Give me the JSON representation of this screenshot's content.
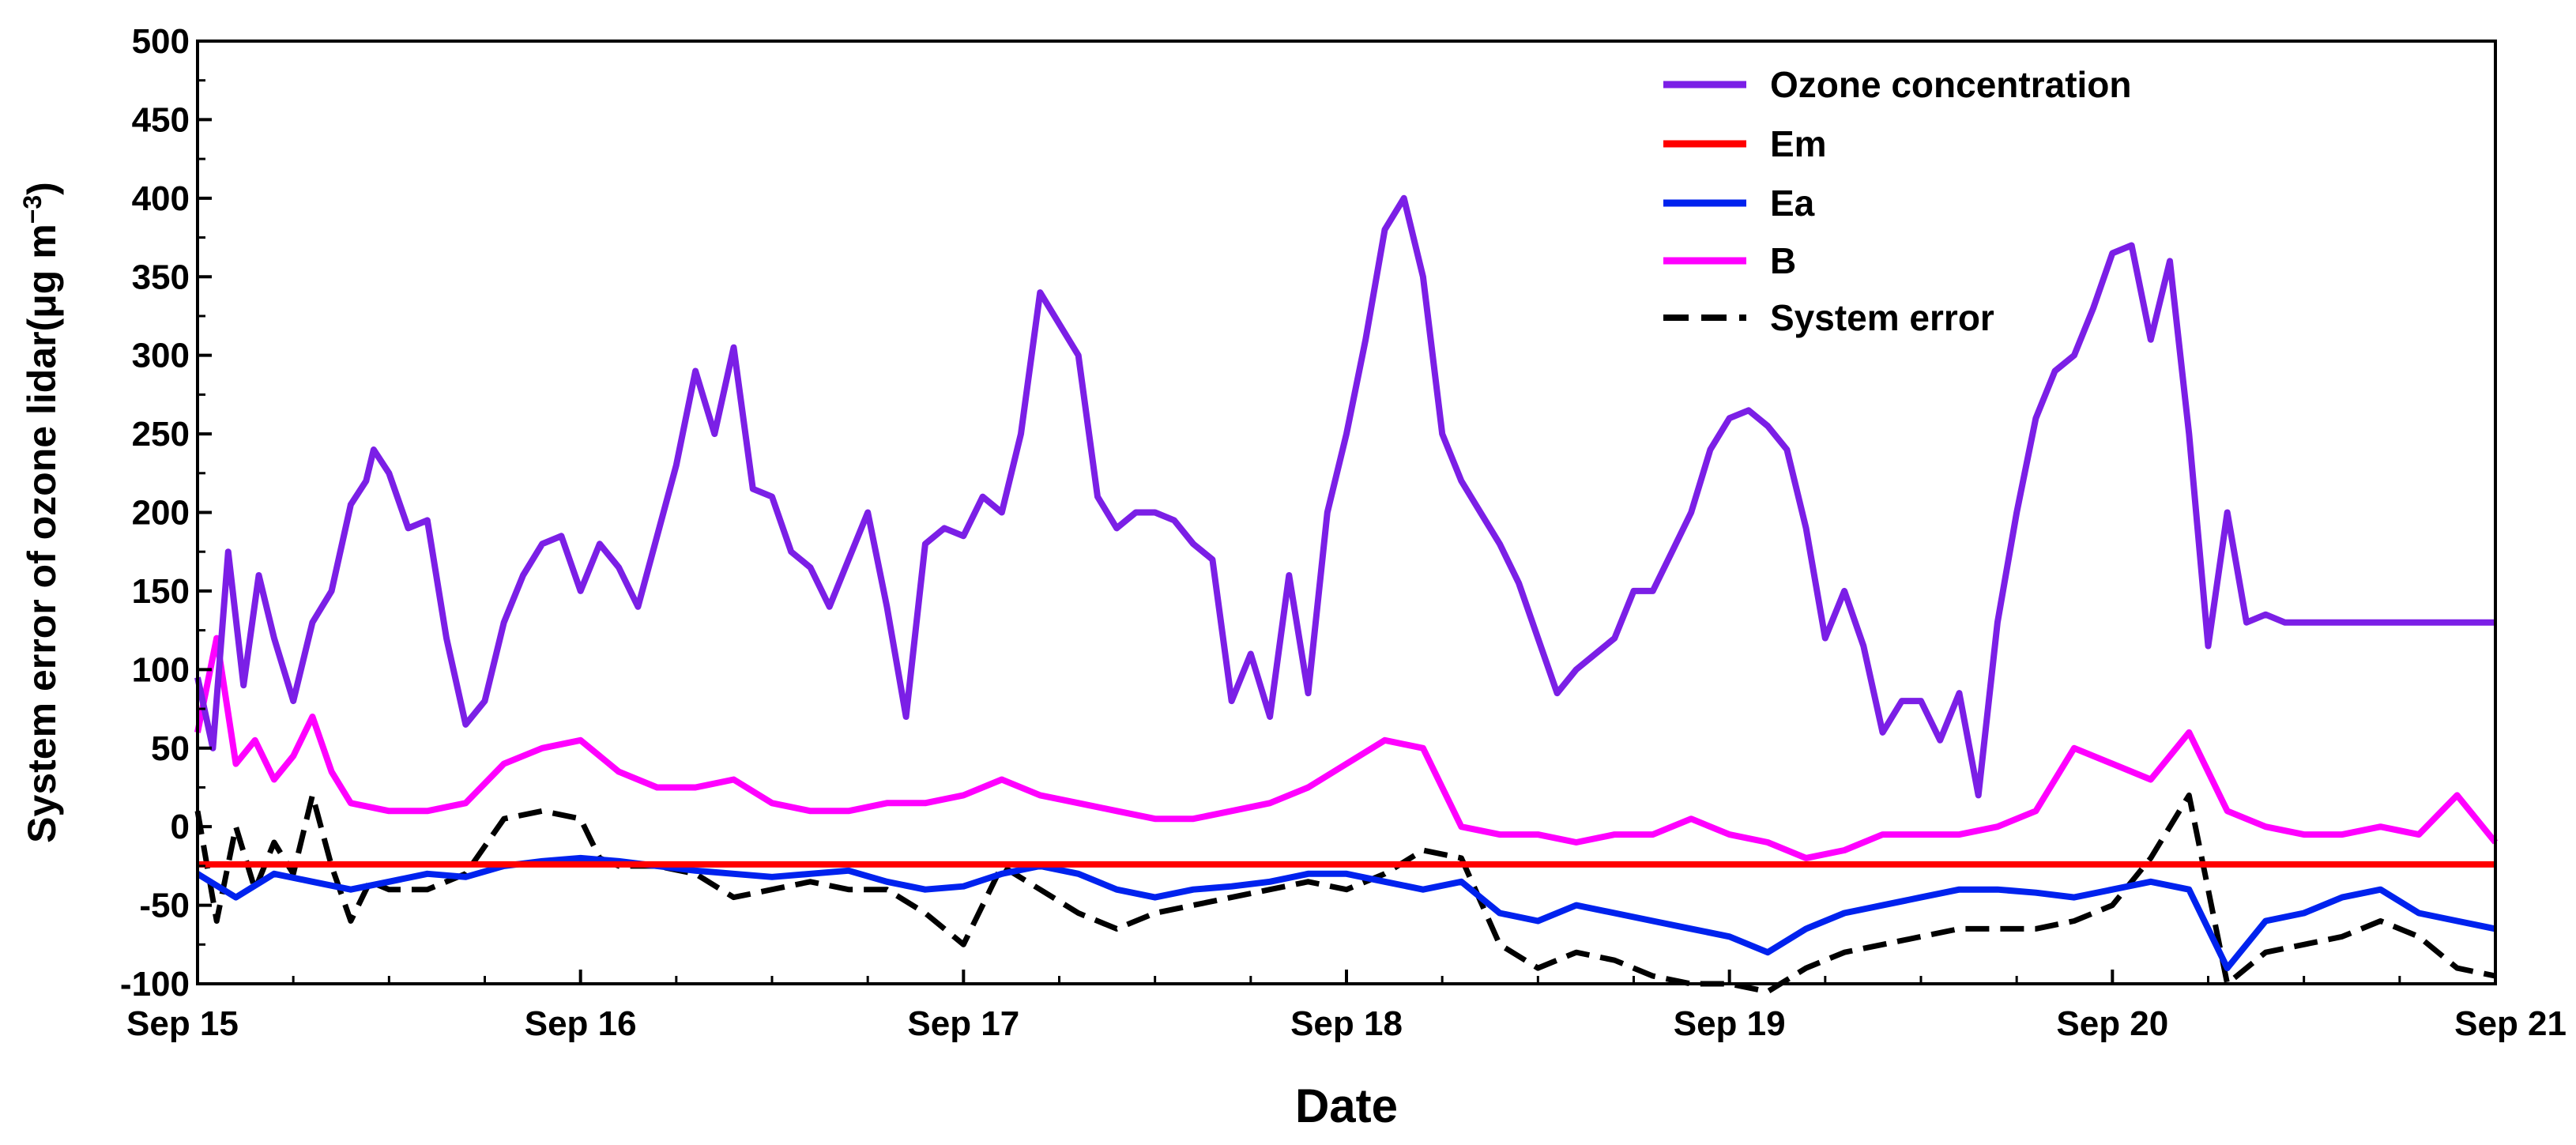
{
  "chart_data": {
    "type": "line",
    "title": "",
    "xlabel": "Date",
    "ylabel_main": "System error of ozone lidar(",
    "ylabel_unit": "μg m",
    "ylabel_sup": "−3",
    "ylabel_close": ")",
    "x_tick_labels": [
      "Sep 15",
      "Sep 16",
      "Sep 17",
      "Sep 18",
      "Sep 19",
      "Sep 20",
      "Sep 21"
    ],
    "x_tick_values": [
      0,
      1,
      2,
      3,
      4,
      5,
      6
    ],
    "xlim": [
      0,
      6
    ],
    "ylim": [
      -100,
      500
    ],
    "y_ticks": [
      -100,
      -50,
      0,
      50,
      100,
      150,
      200,
      250,
      300,
      350,
      400,
      450,
      500
    ],
    "y_tick_labels": [
      "-100",
      "-50",
      "0",
      "50",
      "100",
      "150",
      "200",
      "250",
      "300",
      "350",
      "400",
      "450",
      "500"
    ],
    "legend_position": "top-right",
    "series": [
      {
        "name": "Ozone concentration",
        "color": "#7B1FE6",
        "style": "solid",
        "x": [
          0.0,
          0.04,
          0.08,
          0.12,
          0.16,
          0.2,
          0.25,
          0.3,
          0.35,
          0.4,
          0.44,
          0.46,
          0.5,
          0.55,
          0.6,
          0.65,
          0.7,
          0.75,
          0.8,
          0.85,
          0.9,
          0.95,
          1.0,
          1.05,
          1.1,
          1.15,
          1.2,
          1.25,
          1.3,
          1.35,
          1.4,
          1.45,
          1.5,
          1.55,
          1.6,
          1.65,
          1.7,
          1.75,
          1.8,
          1.85,
          1.9,
          1.95,
          2.0,
          2.05,
          2.1,
          2.15,
          2.2,
          2.25,
          2.3,
          2.35,
          2.4,
          2.45,
          2.5,
          2.55,
          2.6,
          2.65,
          2.7,
          2.75,
          2.8,
          2.85,
          2.9,
          2.95,
          3.0,
          3.05,
          3.1,
          3.15,
          3.2,
          3.25,
          3.3,
          3.35,
          3.4,
          3.45,
          3.5,
          3.55,
          3.6,
          3.65,
          3.7,
          3.75,
          3.8,
          3.85,
          3.9,
          3.95,
          4.0,
          4.05,
          4.1,
          4.15,
          4.2,
          4.25,
          4.3,
          4.35,
          4.4,
          4.45,
          4.5,
          4.55,
          4.6,
          4.65,
          4.7,
          4.75,
          4.8,
          4.85,
          4.9,
          4.95,
          5.0,
          5.05,
          5.1,
          5.15,
          5.2,
          5.25,
          5.3,
          5.35,
          5.4,
          5.45,
          5.5,
          5.55,
          5.6,
          5.65,
          5.7,
          5.75,
          5.8,
          5.85,
          5.9,
          5.95,
          6.0
        ],
        "y": [
          95,
          50,
          175,
          90,
          160,
          120,
          80,
          130,
          150,
          205,
          220,
          240,
          225,
          190,
          195,
          120,
          65,
          80,
          130,
          160,
          180,
          185,
          150,
          180,
          165,
          140,
          185,
          230,
          290,
          250,
          305,
          215,
          210,
          175,
          165,
          140,
          170,
          200,
          140,
          70,
          180,
          190,
          185,
          210,
          200,
          250,
          340,
          320,
          300,
          210,
          190,
          200,
          200,
          195,
          180,
          170,
          80,
          110,
          70,
          160,
          85,
          200,
          250,
          310,
          380,
          400,
          350,
          250,
          220,
          200,
          180,
          155,
          120,
          85,
          100,
          110,
          120,
          150,
          150,
          175,
          200,
          240,
          260,
          265,
          255,
          240,
          190,
          120,
          150,
          115,
          60,
          80,
          80,
          55,
          85,
          20,
          130,
          200,
          260,
          290,
          300,
          330,
          365,
          370,
          310,
          360,
          250,
          115,
          200,
          130,
          135,
          130,
          130,
          130,
          130,
          130,
          130,
          130,
          130,
          130,
          130,
          130,
          130
        ]
      },
      {
        "name": "Em",
        "color": "#FF0000",
        "style": "solid",
        "x": [
          0,
          6
        ],
        "y": [
          -24,
          -24
        ]
      },
      {
        "name": "Ea",
        "color": "#0022EE",
        "style": "solid",
        "x": [
          0.0,
          0.1,
          0.2,
          0.3,
          0.4,
          0.5,
          0.6,
          0.7,
          0.8,
          0.9,
          1.0,
          1.1,
          1.2,
          1.3,
          1.4,
          1.5,
          1.6,
          1.7,
          1.8,
          1.9,
          2.0,
          2.1,
          2.2,
          2.3,
          2.4,
          2.5,
          2.6,
          2.7,
          2.8,
          2.9,
          3.0,
          3.1,
          3.2,
          3.3,
          3.4,
          3.5,
          3.6,
          3.7,
          3.8,
          3.9,
          4.0,
          4.1,
          4.2,
          4.3,
          4.4,
          4.5,
          4.6,
          4.7,
          4.8,
          4.9,
          5.0,
          5.1,
          5.2,
          5.3,
          5.4,
          5.5,
          5.6,
          5.7,
          5.8,
          5.9,
          6.0
        ],
        "y": [
          -30,
          -45,
          -30,
          -35,
          -40,
          -35,
          -30,
          -32,
          -25,
          -22,
          -20,
          -22,
          -25,
          -28,
          -30,
          -32,
          -30,
          -28,
          -35,
          -40,
          -38,
          -30,
          -25,
          -30,
          -40,
          -45,
          -40,
          -38,
          -35,
          -30,
          -30,
          -35,
          -40,
          -35,
          -55,
          -60,
          -50,
          -55,
          -60,
          -65,
          -70,
          -80,
          -65,
          -55,
          -50,
          -45,
          -40,
          -40,
          -42,
          -45,
          -40,
          -35,
          -40,
          -90,
          -60,
          -55,
          -45,
          -40,
          -55,
          -60,
          -65
        ]
      },
      {
        "name": "B",
        "color": "#FF00FF",
        "style": "solid",
        "x": [
          0.0,
          0.05,
          0.1,
          0.15,
          0.2,
          0.25,
          0.3,
          0.35,
          0.4,
          0.5,
          0.6,
          0.7,
          0.8,
          0.9,
          1.0,
          1.1,
          1.2,
          1.3,
          1.4,
          1.5,
          1.6,
          1.7,
          1.8,
          1.9,
          2.0,
          2.1,
          2.2,
          2.3,
          2.4,
          2.5,
          2.6,
          2.7,
          2.8,
          2.9,
          3.0,
          3.1,
          3.2,
          3.3,
          3.4,
          3.5,
          3.6,
          3.7,
          3.8,
          3.9,
          4.0,
          4.1,
          4.2,
          4.3,
          4.4,
          4.5,
          4.6,
          4.7,
          4.8,
          4.9,
          5.0,
          5.1,
          5.2,
          5.3,
          5.4,
          5.5,
          5.6,
          5.7,
          5.8,
          5.9,
          6.0
        ],
        "y": [
          60,
          120,
          40,
          55,
          30,
          45,
          70,
          35,
          15,
          10,
          10,
          15,
          40,
          50,
          55,
          35,
          25,
          25,
          30,
          15,
          10,
          10,
          15,
          15,
          20,
          30,
          20,
          15,
          10,
          5,
          5,
          10,
          15,
          25,
          40,
          55,
          50,
          0,
          -5,
          -5,
          -10,
          -5,
          -5,
          5,
          -5,
          -10,
          -20,
          -15,
          -5,
          -5,
          -5,
          0,
          10,
          50,
          40,
          30,
          60,
          10,
          0,
          -5,
          -5,
          0,
          -5,
          20,
          -10
        ]
      },
      {
        "name": "System error",
        "color": "#000000",
        "style": "dashed",
        "x": [
          0.0,
          0.05,
          0.1,
          0.15,
          0.2,
          0.25,
          0.3,
          0.35,
          0.4,
          0.45,
          0.5,
          0.6,
          0.7,
          0.8,
          0.9,
          1.0,
          1.05,
          1.1,
          1.2,
          1.3,
          1.4,
          1.5,
          1.6,
          1.7,
          1.8,
          1.9,
          2.0,
          2.1,
          2.2,
          2.3,
          2.4,
          2.5,
          2.6,
          2.7,
          2.8,
          2.9,
          3.0,
          3.1,
          3.2,
          3.3,
          3.4,
          3.5,
          3.6,
          3.7,
          3.8,
          3.9,
          4.0,
          4.1,
          4.2,
          4.3,
          4.4,
          4.5,
          4.6,
          4.7,
          4.8,
          4.9,
          5.0,
          5.1,
          5.2,
          5.3,
          5.4,
          5.5,
          5.6,
          5.7,
          5.8,
          5.9,
          6.0
        ],
        "y": [
          10,
          -60,
          0,
          -40,
          -10,
          -30,
          20,
          -25,
          -60,
          -35,
          -40,
          -40,
          -30,
          5,
          10,
          5,
          -20,
          -25,
          -25,
          -30,
          -45,
          -40,
          -35,
          -40,
          -40,
          -55,
          -75,
          -25,
          -40,
          -55,
          -65,
          -55,
          -50,
          -45,
          -40,
          -35,
          -40,
          -30,
          -15,
          -20,
          -75,
          -90,
          -80,
          -85,
          -95,
          -100,
          -100,
          -105,
          -90,
          -80,
          -75,
          -70,
          -65,
          -65,
          -65,
          -60,
          -50,
          -20,
          20,
          -100,
          -80,
          -75,
          -70,
          -60,
          -70,
          -90,
          -95
        ]
      }
    ]
  }
}
